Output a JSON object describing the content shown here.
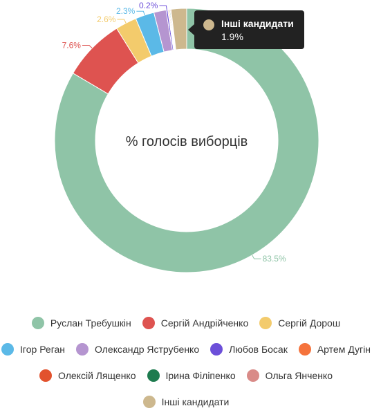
{
  "chart_data": {
    "type": "pie",
    "title": "% голосів виборців",
    "slices": [
      {
        "name": "Руслан Требушкін",
        "value": 83.5,
        "label": "83.5%",
        "color": "#8fc4a7"
      },
      {
        "name": "Сергій Андрійченко",
        "value": 7.6,
        "label": "7.6%",
        "color": "#de5350"
      },
      {
        "name": "Сергій Дорош",
        "value": 2.6,
        "label": "2.6%",
        "color": "#f3cb6c"
      },
      {
        "name": "Ігор Реган",
        "value": 2.3,
        "label": "2.3%",
        "color": "#5bb9e7"
      },
      {
        "name": "Олександр Яструбенко",
        "value": 1.5,
        "label": "",
        "color": "#b595d0"
      },
      {
        "name": "Любов Босак",
        "value": 0.2,
        "label": "0.2%",
        "color": "#6c4fd9"
      },
      {
        "name": "Артем Дугін",
        "value": 0.1,
        "label": "",
        "color": "#f5733c"
      },
      {
        "name": "Олексій Лященко",
        "value": 0.1,
        "label": "",
        "color": "#e2522d"
      },
      {
        "name": "Ірина Філіпенко",
        "value": 0.1,
        "label": "",
        "color": "#1e7b4f"
      },
      {
        "name": "Ольга Янченко",
        "value": 0.1,
        "label": "",
        "color": "#d98b88"
      },
      {
        "name": "Інші кандидати",
        "value": 1.9,
        "label": "",
        "color": "#cdb88e"
      }
    ],
    "legend_position": "bottom"
  },
  "tooltip": {
    "name": "Інші кандидати",
    "value": "1.9%",
    "color": "#cdb88e"
  },
  "legend": {
    "rows": [
      [
        {
          "label": "Руслан Требушкін",
          "color": "#8fc4a7",
          "key": "trebushkin"
        },
        {
          "label": "Сергій Андрійченко",
          "color": "#de5350",
          "key": "andriichenko"
        },
        {
          "label": "Сергій Дорош",
          "color": "#f3cb6c",
          "key": "dorosh"
        }
      ],
      [
        {
          "label": "Ігор Реган",
          "color": "#5bb9e7",
          "key": "rehan"
        },
        {
          "label": "Олександр Яструбенко",
          "color": "#b595d0",
          "key": "yastrubenko"
        },
        {
          "label": "Любов Босак",
          "color": "#6c4fd9",
          "key": "bosak"
        },
        {
          "label": "Артем Дугін",
          "color": "#f5733c",
          "key": "duhin"
        }
      ],
      [
        {
          "label": "Олексій Лященко",
          "color": "#e2522d",
          "key": "liashchenko"
        },
        {
          "label": "Ірина Філіпенко",
          "color": "#1e7b4f",
          "key": "filipenko"
        },
        {
          "label": "Ольга Янченко",
          "color": "#d98b88",
          "key": "yanchenko"
        }
      ],
      [
        {
          "label": "Інші кандидати",
          "color": "#cdb88e",
          "key": "inshi"
        }
      ]
    ]
  }
}
